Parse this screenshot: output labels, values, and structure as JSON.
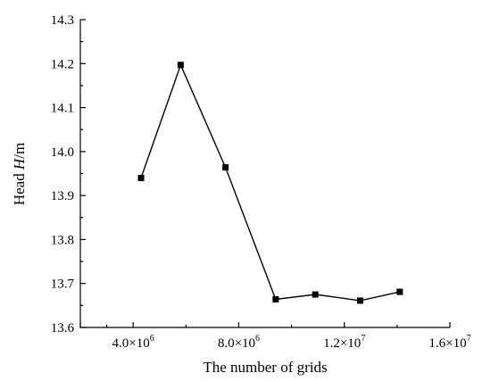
{
  "chart_data": {
    "type": "line",
    "title": "",
    "xlabel": "The number of grids",
    "ylabel_prefix": "Head ",
    "ylabel_var": "H",
    "ylabel_suffix": "/m",
    "xlim": [
      2000000,
      16000000
    ],
    "ylim": [
      13.6,
      14.3
    ],
    "x_ticks": [
      {
        "value": 4000000,
        "mantissa": "4.0×10",
        "exp": "6"
      },
      {
        "value": 8000000,
        "mantissa": "8.0×10",
        "exp": "6"
      },
      {
        "value": 12000000,
        "mantissa": "1.2×10",
        "exp": "7"
      },
      {
        "value": 16000000,
        "mantissa": "1.6×10",
        "exp": "7"
      }
    ],
    "y_ticks": [
      {
        "value": 13.6,
        "label": "13.6"
      },
      {
        "value": 13.7,
        "label": "13.7"
      },
      {
        "value": 13.8,
        "label": "13.8"
      },
      {
        "value": 13.9,
        "label": "13.9"
      },
      {
        "value": 14.0,
        "label": "14.0"
      },
      {
        "value": 14.1,
        "label": "14.1"
      },
      {
        "value": 14.2,
        "label": "14.2"
      },
      {
        "value": 14.3,
        "label": "14.3"
      }
    ],
    "grid": false,
    "series": [
      {
        "marker": "square",
        "color": "#000000",
        "points": [
          {
            "x": 4300000,
            "y": 13.94
          },
          {
            "x": 5800000,
            "y": 14.197
          },
          {
            "x": 7500000,
            "y": 13.964
          },
          {
            "x": 9400000,
            "y": 13.664
          },
          {
            "x": 10900000,
            "y": 13.675
          },
          {
            "x": 12600000,
            "y": 13.661
          },
          {
            "x": 14100000,
            "y": 13.681
          }
        ]
      }
    ]
  }
}
